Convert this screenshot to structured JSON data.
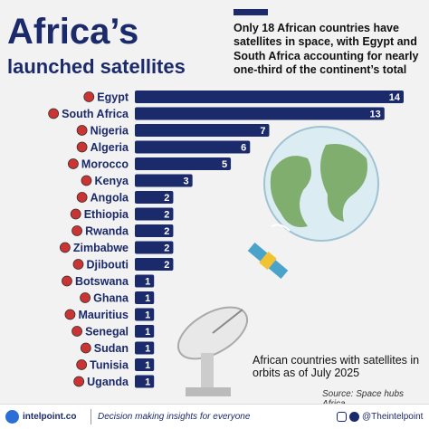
{
  "title": "Africa’s launched satellites",
  "subtitle": "Only 18 African countries have satellites in space, with Egypt and South Africa accounting for nearly one-third of the continent’s total",
  "chart_data": {
    "type": "bar",
    "orientation": "horizontal",
    "color": "#1b2a6b",
    "categories": [
      "Egypt",
      "South Africa",
      "Nigeria",
      "Algeria",
      "Morocco",
      "Kenya",
      "Angola",
      "Ethiopia",
      "Rwanda",
      "Zimbabwe",
      "Djibouti",
      "Botswana",
      "Ghana",
      "Mauritius",
      "Senegal",
      "Sudan",
      "Tunisia",
      "Uganda"
    ],
    "values": [
      14,
      13,
      7,
      6,
      5,
      3,
      2,
      2,
      2,
      2,
      2,
      1,
      1,
      1,
      1,
      1,
      1,
      1
    ]
  },
  "annotation": "African countries with satellites in orbits as of July 2025",
  "source": "Source: Space hubs Africa",
  "footer": {
    "site": "intelpoint.co",
    "tagline": "Decision making insights for everyone",
    "handle": "@Theintelpoint"
  }
}
